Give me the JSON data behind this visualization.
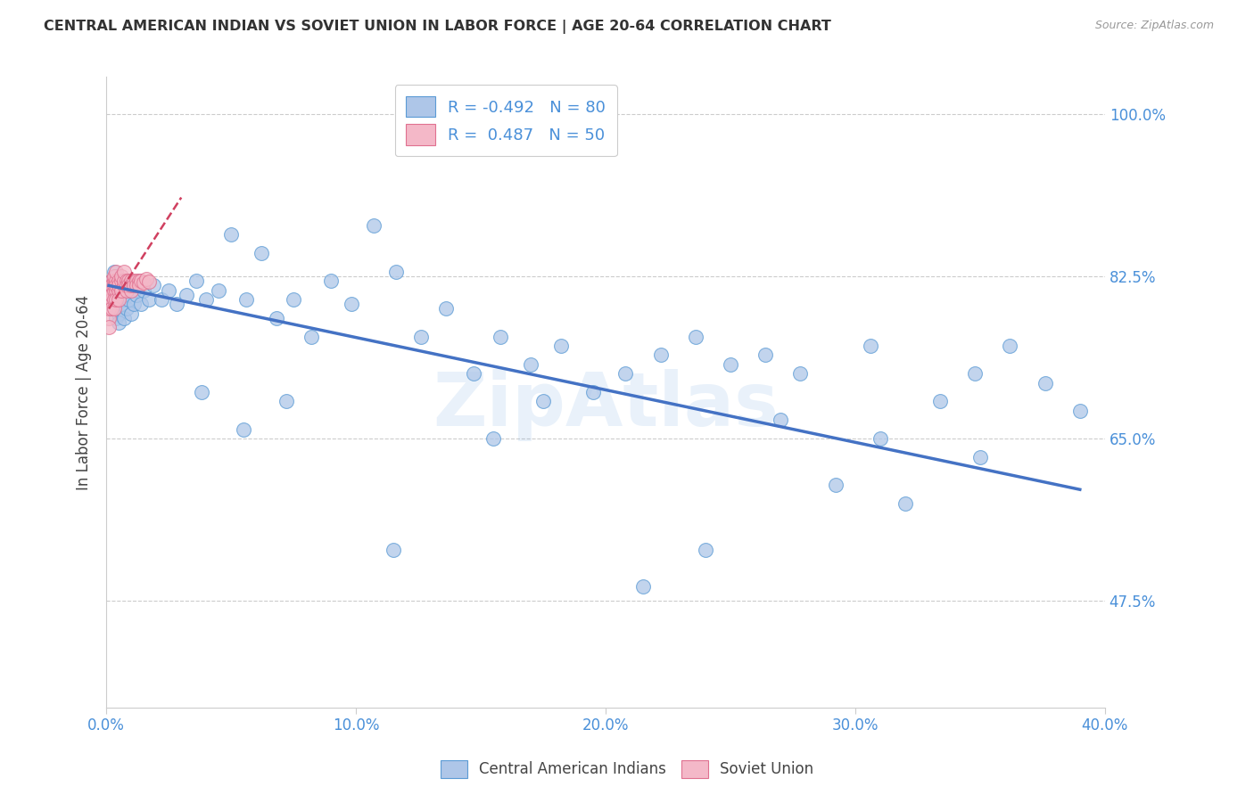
{
  "title": "CENTRAL AMERICAN INDIAN VS SOVIET UNION IN LABOR FORCE | AGE 20-64 CORRELATION CHART",
  "source": "Source: ZipAtlas.com",
  "ylabel": "In Labor Force | Age 20-64",
  "xlim": [
    0.0,
    0.4
  ],
  "ylim": [
    0.36,
    1.04
  ],
  "yticks": [
    0.475,
    0.65,
    0.825,
    1.0
  ],
  "ytick_labels": [
    "47.5%",
    "65.0%",
    "82.5%",
    "100.0%"
  ],
  "xticks": [
    0.0,
    0.1,
    0.2,
    0.3,
    0.4
  ],
  "xtick_labels": [
    "0.0%",
    "10.0%",
    "20.0%",
    "30.0%",
    "40.0%"
  ],
  "blue_R": -0.492,
  "blue_N": 80,
  "pink_R": 0.487,
  "pink_N": 50,
  "blue_color": "#aec6e8",
  "blue_edge_color": "#5b9bd5",
  "blue_line_color": "#4472c4",
  "pink_color": "#f4b8c8",
  "pink_edge_color": "#e07090",
  "pink_line_color": "#d04060",
  "watermark": "ZipAtlas",
  "legend_blue_label": "Central American Indians",
  "legend_pink_label": "Soviet Union",
  "blue_scatter_x": [
    0.001,
    0.002,
    0.002,
    0.003,
    0.003,
    0.003,
    0.004,
    0.004,
    0.004,
    0.005,
    0.005,
    0.005,
    0.006,
    0.006,
    0.007,
    0.007,
    0.007,
    0.008,
    0.008,
    0.009,
    0.009,
    0.01,
    0.01,
    0.011,
    0.011,
    0.012,
    0.013,
    0.014,
    0.015,
    0.017,
    0.019,
    0.022,
    0.025,
    0.028,
    0.032,
    0.036,
    0.04,
    0.045,
    0.05,
    0.056,
    0.062,
    0.068,
    0.075,
    0.082,
    0.09,
    0.098,
    0.107,
    0.116,
    0.126,
    0.136,
    0.147,
    0.158,
    0.17,
    0.182,
    0.195,
    0.208,
    0.222,
    0.236,
    0.25,
    0.264,
    0.278,
    0.292,
    0.306,
    0.32,
    0.334,
    0.348,
    0.362,
    0.376,
    0.39,
    0.038,
    0.055,
    0.072,
    0.115,
    0.155,
    0.175,
    0.215,
    0.24,
    0.27,
    0.31,
    0.35
  ],
  "blue_scatter_y": [
    0.81,
    0.82,
    0.795,
    0.815,
    0.79,
    0.83,
    0.8,
    0.78,
    0.825,
    0.785,
    0.81,
    0.775,
    0.82,
    0.795,
    0.815,
    0.8,
    0.78,
    0.81,
    0.79,
    0.82,
    0.8,
    0.815,
    0.785,
    0.81,
    0.795,
    0.805,
    0.82,
    0.795,
    0.81,
    0.8,
    0.815,
    0.8,
    0.81,
    0.795,
    0.805,
    0.82,
    0.8,
    0.81,
    0.87,
    0.8,
    0.85,
    0.78,
    0.8,
    0.76,
    0.82,
    0.795,
    0.88,
    0.83,
    0.76,
    0.79,
    0.72,
    0.76,
    0.73,
    0.75,
    0.7,
    0.72,
    0.74,
    0.76,
    0.73,
    0.74,
    0.72,
    0.6,
    0.75,
    0.58,
    0.69,
    0.72,
    0.75,
    0.71,
    0.68,
    0.7,
    0.66,
    0.69,
    0.53,
    0.65,
    0.69,
    0.49,
    0.53,
    0.67,
    0.65,
    0.63
  ],
  "pink_scatter_x": [
    0.001,
    0.001,
    0.001,
    0.001,
    0.001,
    0.002,
    0.002,
    0.002,
    0.002,
    0.002,
    0.002,
    0.003,
    0.003,
    0.003,
    0.003,
    0.003,
    0.003,
    0.004,
    0.004,
    0.004,
    0.004,
    0.004,
    0.005,
    0.005,
    0.005,
    0.005,
    0.006,
    0.006,
    0.006,
    0.007,
    0.007,
    0.007,
    0.008,
    0.008,
    0.008,
    0.009,
    0.009,
    0.01,
    0.01,
    0.01,
    0.011,
    0.011,
    0.012,
    0.012,
    0.013,
    0.013,
    0.014,
    0.015,
    0.016,
    0.017
  ],
  "pink_scatter_y": [
    0.78,
    0.79,
    0.8,
    0.81,
    0.77,
    0.81,
    0.82,
    0.8,
    0.815,
    0.79,
    0.805,
    0.82,
    0.81,
    0.8,
    0.815,
    0.825,
    0.79,
    0.81,
    0.82,
    0.8,
    0.815,
    0.83,
    0.81,
    0.82,
    0.8,
    0.815,
    0.82,
    0.81,
    0.825,
    0.815,
    0.82,
    0.83,
    0.81,
    0.82,
    0.815,
    0.82,
    0.815,
    0.82,
    0.81,
    0.815,
    0.82,
    0.815,
    0.82,
    0.815,
    0.82,
    0.815,
    0.82,
    0.818,
    0.822,
    0.819
  ],
  "blue_trend_x": [
    0.001,
    0.39
  ],
  "blue_trend_y": [
    0.815,
    0.595
  ],
  "pink_trend_x": [
    0.001,
    0.03
  ],
  "pink_trend_y": [
    0.79,
    0.91
  ]
}
